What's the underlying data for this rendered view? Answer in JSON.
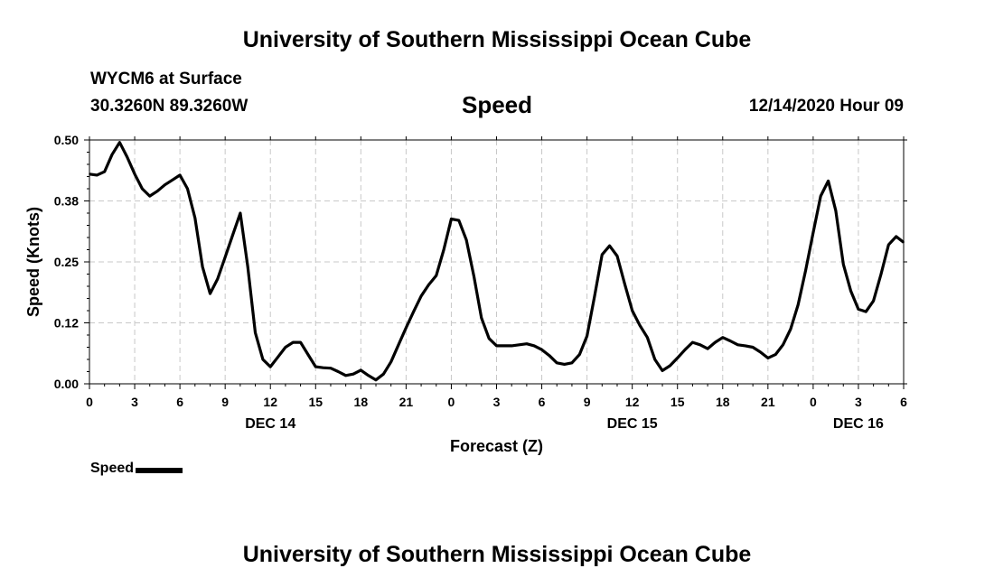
{
  "header": {
    "top_title": "University of Southern Mississippi Ocean Cube",
    "station": "WYCM6 at Surface",
    "coords": "30.3260N 89.3260W",
    "datetime": "12/14/2020 Hour 09"
  },
  "footer": {
    "bottom_title": "University of Southern Mississippi Ocean Cube"
  },
  "legend": {
    "label": "Speed"
  },
  "chart_data": {
    "type": "line",
    "title": "Speed",
    "xlabel": "Forecast (Z)",
    "ylabel": "Speed (Knots)",
    "xlim": [
      0,
      54
    ],
    "ylim": [
      0,
      0.5
    ],
    "y_ticks": [
      "0.00",
      "0.12",
      "0.25",
      "0.38",
      "0.50"
    ],
    "x_ticks": [
      "0",
      "3",
      "6",
      "9",
      "12",
      "15",
      "18",
      "21",
      "0",
      "3",
      "6",
      "9",
      "12",
      "15",
      "18",
      "21",
      "0",
      "3",
      "6"
    ],
    "day_labels": [
      {
        "label": "DEC 14",
        "hour": 12
      },
      {
        "label": "DEC 15",
        "hour": 36
      },
      {
        "label": "DEC 16",
        "hour": 51
      }
    ],
    "grid": true,
    "series": [
      {
        "name": "Speed",
        "color": "#000000",
        "x": [
          0,
          0.5,
          1,
          1.5,
          2,
          2.5,
          3,
          3.5,
          4,
          4.5,
          5,
          5.5,
          6,
          6.5,
          7,
          7.5,
          8,
          8.5,
          9,
          9.5,
          10,
          10.5,
          11,
          11.5,
          12,
          12.5,
          13,
          13.5,
          14,
          14.5,
          15,
          15.5,
          16,
          16.5,
          17,
          17.5,
          18,
          18.5,
          19,
          19.5,
          20,
          20.5,
          21,
          21.5,
          22,
          22.5,
          23,
          23.5,
          24,
          24.5,
          25,
          25.5,
          26,
          26.5,
          27,
          27.5,
          28,
          28.5,
          29,
          29.5,
          30,
          30.5,
          31,
          31.5,
          32,
          32.5,
          33,
          33.5,
          34,
          34.5,
          35,
          35.5,
          36,
          36.5,
          37,
          37.5,
          38,
          38.5,
          39,
          39.5,
          40,
          40.5,
          41,
          41.5,
          42,
          42.5,
          43,
          43.5,
          44,
          44.5,
          45,
          45.5,
          46,
          46.5,
          47,
          47.5,
          48,
          48.5,
          49,
          49.5,
          50,
          50.5,
          51,
          51.5,
          52,
          52.5,
          53,
          53.5,
          54
        ],
        "y": [
          0.43,
          0.428,
          0.435,
          0.47,
          0.495,
          0.465,
          0.43,
          0.4,
          0.385,
          0.395,
          0.408,
          0.418,
          0.428,
          0.4,
          0.34,
          0.24,
          0.185,
          0.215,
          0.26,
          0.305,
          0.35,
          0.24,
          0.105,
          0.05,
          0.035,
          0.055,
          0.075,
          0.085,
          0.085,
          0.06,
          0.035,
          0.033,
          0.032,
          0.025,
          0.017,
          0.02,
          0.028,
          0.017,
          0.008,
          0.02,
          0.045,
          0.08,
          0.115,
          0.148,
          0.18,
          0.203,
          0.222,
          0.275,
          0.338,
          0.335,
          0.295,
          0.22,
          0.135,
          0.093,
          0.078,
          0.078,
          0.078,
          0.08,
          0.082,
          0.078,
          0.07,
          0.058,
          0.043,
          0.04,
          0.043,
          0.06,
          0.098,
          0.18,
          0.265,
          0.283,
          0.262,
          0.205,
          0.15,
          0.12,
          0.095,
          0.05,
          0.027,
          0.037,
          0.053,
          0.07,
          0.085,
          0.08,
          0.072,
          0.085,
          0.095,
          0.088,
          0.08,
          0.078,
          0.075,
          0.065,
          0.053,
          0.06,
          0.08,
          0.112,
          0.162,
          0.232,
          0.31,
          0.385,
          0.416,
          0.355,
          0.245,
          0.19,
          0.153,
          0.148,
          0.17,
          0.225,
          0.285,
          0.302,
          0.29
        ]
      }
    ]
  }
}
